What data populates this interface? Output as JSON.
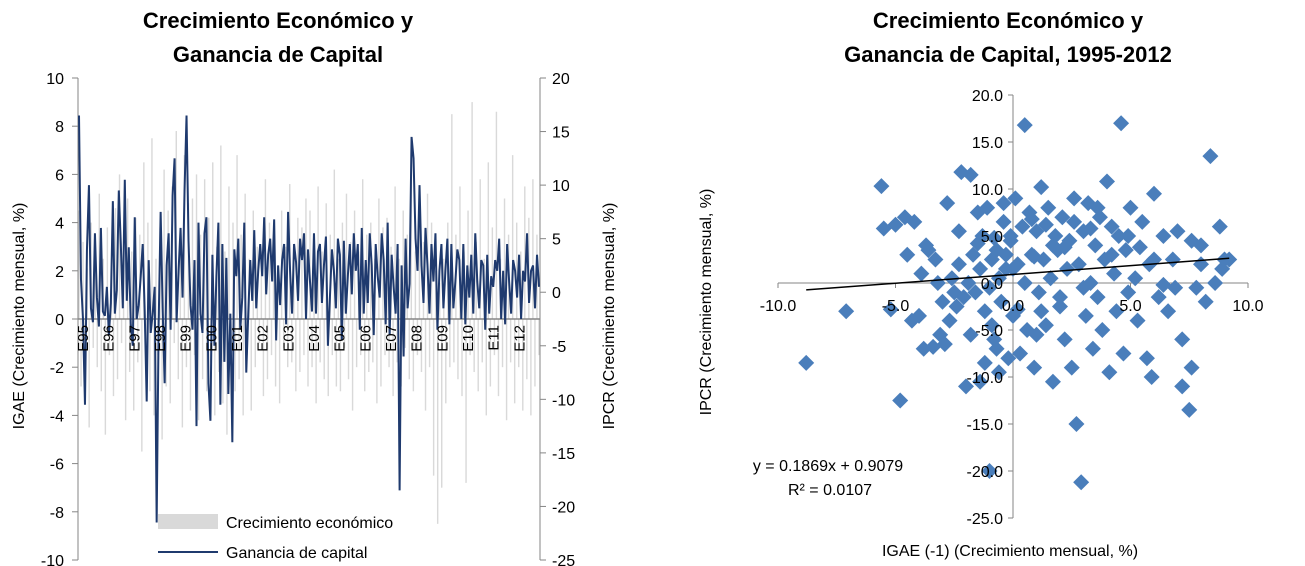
{
  "chart_data": [
    {
      "type": "line",
      "title_lines": [
        "Crecimiento Económico y",
        "Ganancia de Capital"
      ],
      "ylabel": "IGAE (Crecimiento mensual, %)",
      "y2label": "IPCR (Crecimiento mensual, %)",
      "ylim": [
        -10,
        10
      ],
      "y2lim": [
        -25,
        20
      ],
      "yticks": [
        10,
        8,
        6,
        4,
        2,
        0,
        -2,
        -4,
        -6,
        -8,
        -10
      ],
      "y2ticks": [
        20,
        15,
        10,
        5,
        0,
        -5,
        -10,
        -15,
        -20,
        -25
      ],
      "x_labels": [
        "E95",
        "E96",
        "E97",
        "E98",
        "E99",
        "E00",
        "E01",
        "E02",
        "E03",
        "E04",
        "E05",
        "E06",
        "E07",
        "E08",
        "E09",
        "E10",
        "E11",
        "E12"
      ],
      "legend": [
        "Crecimiento económico",
        "Ganancia de capital"
      ],
      "series": [
        {
          "name": "Crecimiento económico",
          "axis": "left",
          "kind": "bar",
          "color": "#d9d9d9",
          "values": [
            4.5,
            -2.8,
            3.2,
            -3.5,
            2.1,
            -4.5,
            4.0,
            -1.2,
            3.5,
            -2.0,
            5.2,
            -3.0,
            2.5,
            -4.8,
            3.8,
            -1.5,
            2.0,
            -3.2,
            4.6,
            -2.5,
            6.0,
            -1.0,
            3.0,
            -4.2,
            5.0,
            -2.2,
            2.8,
            -3.8,
            4.2,
            -1.8,
            3.5,
            -5.5,
            6.5,
            -2.0,
            4.0,
            -3.0,
            7.5,
            -4.0,
            2.5,
            -1.5,
            3.8,
            -5.0,
            6.2,
            -2.8,
            4.5,
            -3.5,
            5.5,
            -1.0,
            7.8,
            -2.5,
            3.2,
            -4.5,
            6.8,
            -2.0,
            4.8,
            -3.8,
            5.0,
            -1.5,
            6.0,
            -4.2,
            3.5,
            -2.5,
            5.8,
            -3.0,
            4.2,
            -1.8,
            6.5,
            -4.0,
            3.0,
            -2.2,
            7.2,
            -3.5,
            2.8,
            -4.8,
            5.5,
            -1.2,
            4.0,
            -3.0,
            6.8,
            -2.5,
            3.5,
            -4.0,
            5.2,
            -1.5,
            2.5,
            -3.8,
            4.5,
            -2.0,
            3.0,
            -1.0,
            2.8,
            -3.2,
            5.8,
            -2.5,
            4.0,
            -1.5,
            3.5,
            -2.8,
            2.2,
            -3.5,
            4.5,
            -1.2,
            3.0,
            -2.0,
            5.6,
            -1.8,
            2.5,
            -3.0,
            4.2,
            -2.2,
            3.8,
            -1.5,
            5.0,
            -2.8,
            4.5,
            -2.0,
            3.0,
            -3.5,
            5.5,
            -1.8,
            2.8,
            -2.5,
            4.8,
            -3.2,
            3.5,
            -1.5,
            6.2,
            -2.8,
            2.5,
            -3.0,
            4.0,
            -1.2,
            5.2,
            -2.5,
            3.2,
            -3.8,
            4.5,
            -2.0,
            2.8,
            -1.5,
            5.8,
            -3.0,
            3.5,
            -2.2,
            4.0,
            -1.8,
            2.5,
            -3.5,
            5.0,
            -2.8,
            3.8,
            -1.5,
            4.2,
            -2.0,
            3.0,
            -3.2,
            5.5,
            -1.8,
            2.5,
            -2.8,
            4.5,
            -1.2,
            3.5,
            -2.5,
            6.0,
            -3.0,
            2.8,
            -1.5,
            4.8,
            -2.2,
            3.2,
            -3.8,
            5.2,
            -2.0,
            4.0,
            -6.5,
            2.0,
            -8.5,
            1.5,
            -7.0,
            2.5,
            -3.5,
            4.0,
            -2.0,
            8.5,
            -1.8,
            3.5,
            -2.5,
            5.5,
            -3.2,
            2.8,
            -6.8,
            4.5,
            -1.5,
            9.0,
            -2.2,
            3.2,
            -3.0,
            5.8,
            -1.8,
            2.5,
            -4.0,
            6.5,
            -2.8,
            3.8,
            -1.5,
            8.6,
            -3.2,
            2.5,
            -2.0,
            5.0,
            -4.2,
            3.5,
            -1.8,
            6.8,
            -3.5,
            4.0,
            -2.0,
            2.8,
            -3.8,
            5.5,
            -2.5,
            4.2,
            -4.0,
            5.8,
            -2.8,
            3.5,
            -1.5
          ]
        },
        {
          "name": "Ganancia de capital",
          "axis": "right",
          "kind": "line",
          "color": "#1f3a6e",
          "values": [
            16.5,
            1.2,
            -2.5,
            -10.5,
            4.0,
            10.0,
            -1.5,
            -2.8,
            5.5,
            -0.5,
            -3.2,
            6.0,
            -1.8,
            -2.2,
            0.5,
            -4.0,
            -1.0,
            8.5,
            -2.0,
            0.2,
            9.5,
            4.5,
            -1.5,
            10.5,
            -0.8,
            4.2,
            -3.0,
            -5.0,
            7.0,
            -2.5,
            -1.2,
            1.5,
            4.5,
            -1.8,
            -10.2,
            3.0,
            -3.8,
            -2.0,
            0.5,
            -21.5,
            -3.0,
            7.5,
            -1.5,
            -8.5,
            2.5,
            5.5,
            -3.5,
            9.0,
            12.5,
            -2.8,
            2.0,
            6.0,
            -0.5,
            9.5,
            16.5,
            4.8,
            -1.2,
            -3.5,
            3.0,
            -12.5,
            6.5,
            -2.0,
            -3.8,
            5.5,
            7.0,
            -8.5,
            -12.0,
            3.5,
            -5.0,
            1.5,
            6.5,
            -10.5,
            4.5,
            -6.5,
            3.2,
            -9.5,
            -2.0,
            -14.0,
            4.0,
            1.5,
            5.0,
            -3.5,
            -0.5,
            6.5,
            -7.5,
            -2.0,
            3.0,
            -0.8,
            5.8,
            -1.5,
            2.0,
            4.5,
            1.5,
            7.0,
            -0.2,
            3.5,
            5.0,
            1.0,
            6.8,
            -4.5,
            2.5,
            -1.2,
            3.0,
            4.5,
            -3.0,
            7.5,
            2.0,
            -2.0,
            4.5,
            2.8,
            -0.8,
            5.0,
            3.0,
            5.5,
            -2.5,
            4.0,
            1.0,
            -1.8,
            5.5,
            -2.0,
            3.8,
            4.5,
            -1.0,
            2.5,
            5.2,
            -5.0,
            -0.5,
            4.0,
            2.0,
            -1.5,
            5.0,
            3.5,
            -4.5,
            4.8,
            -2.0,
            1.5,
            4.5,
            -0.2,
            5.5,
            2.0,
            4.5,
            -3.5,
            6.0,
            -2.0,
            3.0,
            -1.0,
            5.5,
            2.5,
            -4.0,
            4.5,
            1.5,
            -0.5,
            5.5,
            3.0,
            -3.0,
            6.5,
            -4.0,
            3.5,
            0.5,
            -2.0,
            4.5,
            -18.5,
            2.5,
            -6.0,
            5.0,
            -1.5,
            0.8,
            14.5,
            12.5,
            5.0,
            2.0,
            10.0,
            2.5,
            -1.0,
            6.0,
            2.5,
            -2.0,
            4.5,
            1.0,
            5.5,
            -3.5,
            2.0,
            4.5,
            -1.5,
            2.0,
            5.0,
            -3.0,
            4.5,
            -1.5,
            1.0,
            4.0,
            3.0,
            -2.5,
            4.5,
            -3.0,
            2.5,
            -0.5,
            3.5,
            -2.0,
            5.5,
            1.0,
            -1.5,
            3.0,
            2.5,
            -3.5,
            3.5,
            -2.0,
            1.5,
            0.5,
            3.0,
            2.0,
            5.0,
            -2.5,
            2.0,
            -3.0,
            4.5,
            1.0,
            -2.0,
            3.0,
            2.0,
            -0.5,
            3.5,
            -2.5,
            2.0,
            1.0,
            5.5,
            -1.0,
            2.0,
            2.5,
            -1.5,
            3.5,
            0.5
          ]
        }
      ]
    },
    {
      "type": "scatter",
      "title_lines": [
        "Crecimiento Económico y",
        "Ganancia de Capital, 1995-2012"
      ],
      "xlabel": "IGAE (-1) (Crecimiento mensual, %)",
      "ylabel": "IPCR (Crecimiento mensual, %)",
      "xlim": [
        -10,
        10
      ],
      "ylim": [
        -25,
        20
      ],
      "xticks": [
        "-10.0",
        "-5.0",
        "0.0",
        "5.0",
        "10.0"
      ],
      "yticks": [
        "20.0",
        "15.0",
        "10.0",
        "5.0",
        "0.0",
        "-5.0",
        "-10.0",
        "-15.0",
        "-20.0",
        "-25.0"
      ],
      "marker_color": "#4a7ebb",
      "trendline": {
        "slope": 0.1869,
        "intercept": 0.9079,
        "x_range": [
          -8.8,
          9.2
        ]
      },
      "equation": "y = 0.1869x + 0.9079",
      "r_squared": "R² = 0.0107",
      "points": [
        [
          -8.8,
          -8.5
        ],
        [
          -7.1,
          -3.0
        ],
        [
          -5.6,
          10.3
        ],
        [
          -5.5,
          5.8
        ],
        [
          -5.2,
          -2.8
        ],
        [
          -5.0,
          6.2
        ],
        [
          -4.8,
          -12.5
        ],
        [
          -4.6,
          7.0
        ],
        [
          -4.5,
          3.0
        ],
        [
          -4.3,
          -4.0
        ],
        [
          -4.2,
          6.5
        ],
        [
          -4.0,
          -3.5
        ],
        [
          -3.9,
          1.0
        ],
        [
          -3.8,
          -7.0
        ],
        [
          -3.7,
          4.0
        ],
        [
          -3.6,
          3.5
        ],
        [
          -3.4,
          -6.8
        ],
        [
          -3.3,
          2.5
        ],
        [
          -3.2,
          0.0
        ],
        [
          -3.1,
          -5.5
        ],
        [
          -3.0,
          -2.0
        ],
        [
          -2.9,
          -6.5
        ],
        [
          -2.8,
          8.5
        ],
        [
          -2.7,
          -4.0
        ],
        [
          -2.6,
          0.5
        ],
        [
          -2.5,
          -1.0
        ],
        [
          -2.4,
          -2.5
        ],
        [
          -2.3,
          5.5
        ],
        [
          -2.2,
          11.8
        ],
        [
          -2.1,
          -1.5
        ],
        [
          -2.0,
          -11.0
        ],
        [
          -1.9,
          0.0
        ],
        [
          -1.8,
          -5.5
        ],
        [
          -1.8,
          11.5
        ],
        [
          -1.7,
          3.0
        ],
        [
          -1.6,
          -1.0
        ],
        [
          -1.5,
          7.5
        ],
        [
          -1.4,
          -10.5
        ],
        [
          -1.4,
          1.5
        ],
        [
          -1.3,
          5.0
        ],
        [
          -1.2,
          -3.0
        ],
        [
          -1.1,
          8.0
        ],
        [
          -1.0,
          -0.5
        ],
        [
          -0.9,
          -4.5
        ],
        [
          -0.9,
          2.5
        ],
        [
          -0.8,
          -6.0
        ],
        [
          -0.7,
          3.5
        ],
        [
          -0.6,
          -9.5
        ],
        [
          -0.6,
          0.5
        ],
        [
          -0.5,
          -2.0
        ],
        [
          -0.4,
          6.5
        ],
        [
          -0.3,
          1.5
        ],
        [
          -0.2,
          -8.0
        ],
        [
          -0.1,
          4.5
        ],
        [
          0.0,
          -3.5
        ],
        [
          0.1,
          9.0
        ],
        [
          0.2,
          2.0
        ],
        [
          0.3,
          -7.5
        ],
        [
          0.4,
          6.0
        ],
        [
          0.5,
          0.0
        ],
        [
          0.6,
          -5.0
        ],
        [
          0.7,
          7.5
        ],
        [
          0.8,
          3.0
        ],
        [
          0.9,
          -9.0
        ],
        [
          1.0,
          5.5
        ],
        [
          1.1,
          -1.0
        ],
        [
          1.2,
          10.2
        ],
        [
          1.3,
          2.5
        ],
        [
          1.4,
          -4.5
        ],
        [
          1.5,
          8.0
        ],
        [
          1.6,
          0.5
        ],
        [
          1.7,
          -10.5
        ],
        [
          1.8,
          5.0
        ],
        [
          1.9,
          3.5
        ],
        [
          2.0,
          -2.5
        ],
        [
          2.1,
          7.0
        ],
        [
          2.2,
          -6.0
        ],
        [
          2.3,
          1.5
        ],
        [
          2.4,
          4.5
        ],
        [
          2.5,
          -9.0
        ],
        [
          2.6,
          6.5
        ],
        [
          2.7,
          -15.0
        ],
        [
          2.8,
          2.0
        ],
        [
          2.9,
          -21.2
        ],
        [
          3.0,
          5.5
        ],
        [
          3.1,
          -3.5
        ],
        [
          3.2,
          8.5
        ],
        [
          3.3,
          0.0
        ],
        [
          3.4,
          -7.0
        ],
        [
          3.5,
          4.0
        ],
        [
          3.6,
          -1.5
        ],
        [
          3.7,
          7.0
        ],
        [
          3.8,
          -5.0
        ],
        [
          3.9,
          2.5
        ],
        [
          4.0,
          10.8
        ],
        [
          4.1,
          -9.5
        ],
        [
          4.2,
          6.0
        ],
        [
          4.3,
          1.0
        ],
        [
          4.4,
          -3.0
        ],
        [
          4.5,
          5.0
        ],
        [
          4.6,
          17.0
        ],
        [
          4.7,
          -7.5
        ],
        [
          4.8,
          3.5
        ],
        [
          4.9,
          -1.0
        ],
        [
          5.0,
          8.0
        ],
        [
          5.2,
          0.5
        ],
        [
          5.3,
          -4.0
        ],
        [
          5.5,
          6.5
        ],
        [
          5.7,
          -8.0
        ],
        [
          5.8,
          2.0
        ],
        [
          6.0,
          9.5
        ],
        [
          6.2,
          -1.5
        ],
        [
          6.4,
          5.0
        ],
        [
          6.6,
          -3.0
        ],
        [
          6.8,
          2.5
        ],
        [
          7.0,
          5.5
        ],
        [
          7.2,
          -6.0
        ],
        [
          7.5,
          -13.5
        ],
        [
          7.6,
          4.5
        ],
        [
          7.8,
          -0.5
        ],
        [
          8.0,
          2.0
        ],
        [
          8.2,
          -2.0
        ],
        [
          8.4,
          13.5
        ],
        [
          8.6,
          0.0
        ],
        [
          8.8,
          6.0
        ],
        [
          9.0,
          2.5
        ],
        [
          -1.0,
          -20.0
        ],
        [
          0.5,
          16.8
        ],
        [
          -0.3,
          3.0
        ],
        [
          1.0,
          -5.5
        ],
        [
          2.2,
          3.8
        ],
        [
          0.0,
          1.5
        ],
        [
          -1.5,
          4.2
        ],
        [
          3.0,
          -0.5
        ],
        [
          0.8,
          6.8
        ],
        [
          -0.7,
          -7.0
        ],
        [
          1.7,
          4.0
        ],
        [
          -2.3,
          2.0
        ],
        [
          2.6,
          9.0
        ],
        [
          0.2,
          -2.8
        ],
        [
          1.4,
          6.2
        ],
        [
          -0.4,
          8.5
        ],
        [
          3.3,
          5.8
        ],
        [
          -1.2,
          -8.5
        ],
        [
          0.9,
          2.8
        ],
        [
          2.0,
          -1.5
        ],
        [
          -0.1,
          5.0
        ],
        [
          4.2,
          3.0
        ],
        [
          1.2,
          -3.0
        ],
        [
          3.6,
          8.0
        ],
        [
          -0.8,
          4.8
        ],
        [
          5.4,
          3.8
        ],
        [
          7.2,
          -11.0
        ],
        [
          7.6,
          -9.0
        ],
        [
          5.9,
          -10.0
        ],
        [
          6.9,
          -0.5
        ],
        [
          8.9,
          1.5
        ],
        [
          9.2,
          2.5
        ],
        [
          8.0,
          4.0
        ],
        [
          6.4,
          -0.2
        ],
        [
          6.0,
          2.5
        ],
        [
          4.9,
          5.0
        ]
      ]
    }
  ]
}
